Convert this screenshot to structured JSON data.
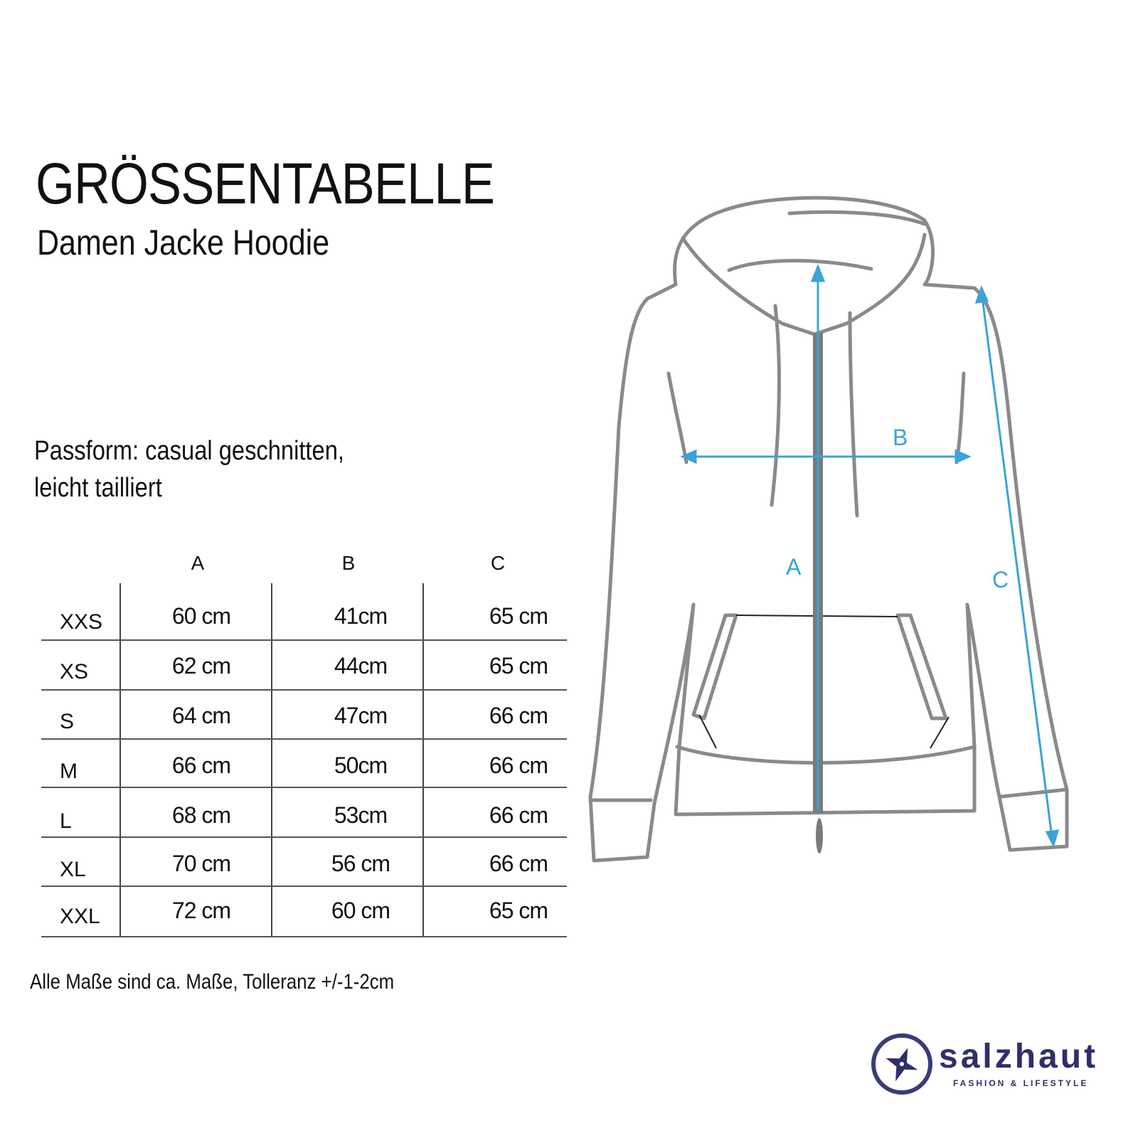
{
  "header": {
    "title": "GRÖSSENTABELLE",
    "subtitle": "Damen Jacke Hoodie"
  },
  "fit": {
    "line1": "Passform: casual geschnitten,",
    "line2": "leicht tailliert"
  },
  "table": {
    "columns": [
      "A",
      "B",
      "C"
    ],
    "rows": [
      {
        "size": "XXS",
        "A": "60 cm",
        "B": "41cm",
        "C": "65 cm"
      },
      {
        "size": "XS",
        "A": "62 cm",
        "B": "44cm",
        "C": "65 cm"
      },
      {
        "size": "S",
        "A": "64 cm",
        "B": "47cm",
        "C": "66 cm"
      },
      {
        "size": "M",
        "A": "66 cm",
        "B": "50cm",
        "C": "66 cm"
      },
      {
        "size": "L",
        "A": "68 cm",
        "B": "53cm",
        "C": "66 cm"
      },
      {
        "size": "XL",
        "A": "70 cm",
        "B": "56 cm",
        "C": "66 cm"
      },
      {
        "size": "XXL",
        "A": "72 cm",
        "B": "60 cm",
        "C": "65 cm"
      }
    ]
  },
  "note": "Alle Maße sind ca. Maße, Tolleranz +/-1-2cm",
  "diagram": {
    "label_a": "A",
    "label_b": "B",
    "label_c": "C",
    "line_color": "#8a8a8a",
    "measure_color": "#3ba3d8"
  },
  "logo": {
    "brand": "salzhaut",
    "tagline": "FASHION & LIFESTYLE",
    "color": "#2e2f6b"
  }
}
